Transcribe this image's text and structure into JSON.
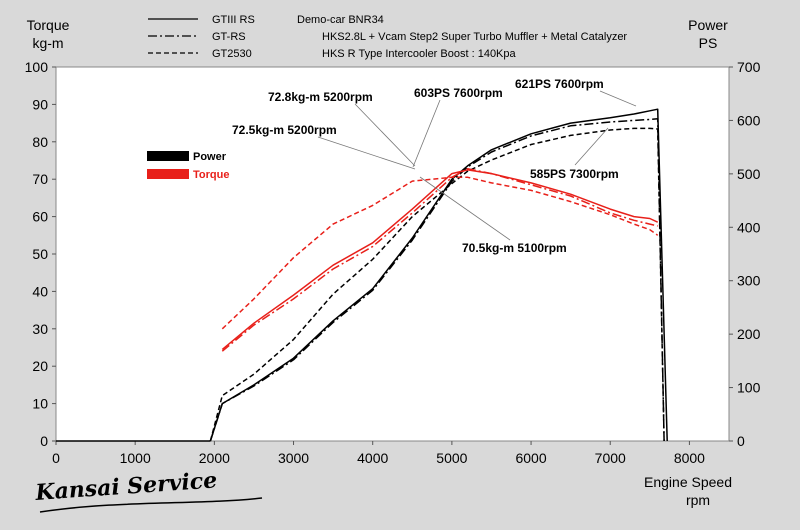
{
  "chart_data": {
    "type": "line",
    "title": "",
    "left_axis": {
      "title_line1": "Torque",
      "title_line2": "kg-m",
      "range": [
        0,
        100
      ],
      "ticks": [
        0,
        10,
        20,
        30,
        40,
        50,
        60,
        70,
        80,
        90,
        100
      ]
    },
    "right_axis": {
      "title_line1": "Power",
      "title_line2": "PS",
      "range": [
        0,
        700
      ],
      "ticks": [
        0,
        100,
        200,
        300,
        400,
        500,
        600,
        700
      ]
    },
    "x_axis": {
      "title_line1": "Engine Speed",
      "title_line2": "rpm",
      "range": [
        0,
        8500
      ],
      "ticks": [
        0,
        1000,
        2000,
        3000,
        4000,
        5000,
        6000,
        7000,
        8000
      ]
    },
    "grid": false,
    "header_legend": [
      {
        "name": "GTIII RS",
        "style": "solid"
      },
      {
        "name": "GT-RS",
        "style": "dashdot"
      },
      {
        "name": "GT2530",
        "style": "dashed"
      }
    ],
    "color_legend": [
      {
        "name": "Power",
        "color": "#000000"
      },
      {
        "name": "Torque",
        "color": "#e8201a"
      }
    ],
    "description_lines": [
      "Demo-car  BNR34",
      "HKS2.8L + Vcam Step2   Super Turbo Muffler + Metal Catalyzer",
      "HKS R Type Intercooler   Boost : 140Kpa"
    ],
    "x": [
      2100,
      2500,
      3000,
      3500,
      4000,
      4500,
      5000,
      5200,
      5500,
      6000,
      6500,
      7000,
      7300,
      7500,
      7600
    ],
    "series": [
      {
        "name": "GTIII RS",
        "quantity": "power",
        "axis": "right",
        "color": "#000000",
        "style": "solid",
        "values": [
          70,
          105,
          155,
          225,
          285,
          380,
          490,
          515,
          545,
          575,
          595,
          605,
          612,
          618,
          621
        ]
      },
      {
        "name": "GT-RS",
        "quantity": "power",
        "axis": "right",
        "color": "#000000",
        "style": "dashdot",
        "values": [
          70,
          103,
          152,
          222,
          282,
          376,
          486,
          513,
          541,
          571,
          590,
          597,
          600,
          602,
          603
        ]
      },
      {
        "name": "GT2530",
        "quantity": "power",
        "axis": "right",
        "color": "#000000",
        "style": "dashed",
        "values": [
          85,
          125,
          190,
          275,
          340,
          420,
          482,
          505,
          526,
          555,
          572,
          582,
          585,
          585,
          584
        ]
      },
      {
        "name": "GTIII RS",
        "quantity": "torque",
        "axis": "left",
        "color": "#e8201a",
        "style": "solid",
        "values": [
          24.5,
          31.5,
          39,
          47,
          53,
          62,
          71.5,
          72.5,
          71.5,
          69,
          66,
          62,
          60,
          59.5,
          58.5
        ]
      },
      {
        "name": "GT-RS",
        "quantity": "torque",
        "axis": "left",
        "color": "#e8201a",
        "style": "dashdot",
        "values": [
          24,
          31,
          38,
          46,
          52,
          61,
          70.5,
          72.8,
          71.5,
          68.5,
          65.5,
          61,
          59,
          58,
          57.5
        ]
      },
      {
        "name": "GT2530",
        "quantity": "torque",
        "axis": "left",
        "color": "#e8201a",
        "style": "dashed",
        "values": [
          30,
          38,
          49,
          58,
          63,
          69.5,
          70.5,
          70.5,
          69,
          67,
          64,
          60.5,
          58,
          56.5,
          55
        ]
      }
    ],
    "annotations": [
      {
        "text": "72.8kg-m  5200rpm"
      },
      {
        "text": "72.5kg-m  5200rpm"
      },
      {
        "text": "603PS  7600rpm"
      },
      {
        "text": "621PS  7600rpm"
      },
      {
        "text": "585PS  7300rpm"
      },
      {
        "text": "70.5kg-m  5100rpm"
      }
    ],
    "logo_text": "Kansai Service"
  }
}
